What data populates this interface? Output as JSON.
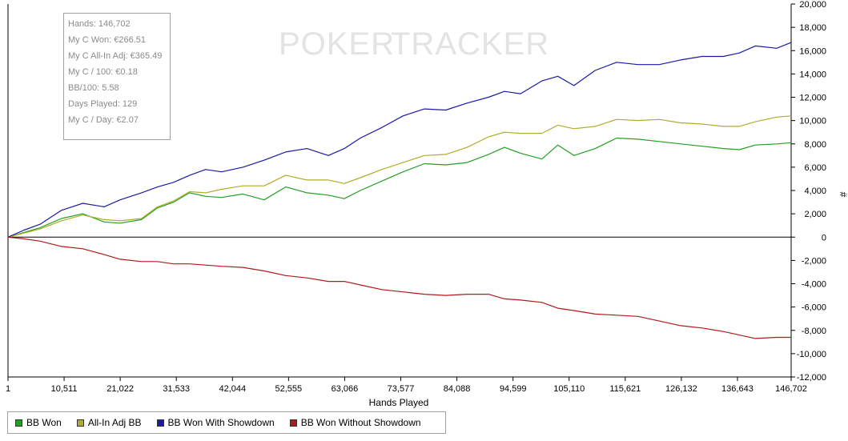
{
  "watermark": {
    "text_poker": "POKER",
    "text_tracker": "TRACKER"
  },
  "stats": {
    "lines": [
      "Hands: 146,702",
      "My C Won: €266.51",
      "My C All-In Adj: €365.49",
      "My C / 100: €0.18",
      "BB/100: 5.58",
      "Days Played: 129",
      "My C / Day: €2.07"
    ]
  },
  "legend": {
    "items": [
      {
        "label": "BB Won",
        "color": "#22a022"
      },
      {
        "label": "All-In Adj BB",
        "color": "#b0ac2a"
      },
      {
        "label": "BB Won With Showdown",
        "color": "#1a1aa6"
      },
      {
        "label": "BB Won Without Showdown",
        "color": "#b01a1a"
      }
    ]
  },
  "chart_data": {
    "type": "line",
    "title": "",
    "xlabel": "Hands Played",
    "ylabel": "#",
    "xlim": [
      1,
      146702
    ],
    "ylim": [
      -12000,
      20000
    ],
    "x_ticks": [
      "1",
      "10,511",
      "21,022",
      "31,533",
      "42,044",
      "52,555",
      "63,066",
      "73,577",
      "84,088",
      "94,599",
      "105,110",
      "115,621",
      "126,132",
      "136,643",
      "146,702"
    ],
    "x_tick_values": [
      1,
      10511,
      21022,
      31533,
      42044,
      52555,
      63066,
      73577,
      84088,
      94599,
      105110,
      115621,
      126132,
      136643,
      146702
    ],
    "y_ticks": [
      "20,000",
      "18,000",
      "16,000",
      "14,000",
      "12,000",
      "10,000",
      "8,000",
      "6,000",
      "4,000",
      "2,000",
      "0",
      "-2,000",
      "-4,000",
      "-6,000",
      "-8,000",
      "-10,000",
      "-12,000"
    ],
    "y_tick_values": [
      20000,
      18000,
      16000,
      14000,
      12000,
      10000,
      8000,
      6000,
      4000,
      2000,
      0,
      -2000,
      -4000,
      -6000,
      -8000,
      -10000,
      -12000
    ],
    "legend_position": "bottom-left",
    "grid": false,
    "series": [
      {
        "name": "BB Won",
        "color": "#22a022",
        "x": [
          1,
          3000,
          6000,
          10000,
          14000,
          18000,
          21000,
          25000,
          28000,
          31000,
          34000,
          37000,
          40000,
          44000,
          48000,
          52000,
          56000,
          60000,
          63000,
          66000,
          70000,
          74000,
          78000,
          82000,
          86000,
          90000,
          93000,
          96000,
          100000,
          103000,
          106000,
          110000,
          114000,
          118000,
          122000,
          126000,
          130000,
          134000,
          137000,
          140000,
          144000,
          146702
        ],
        "y": [
          0,
          400,
          800,
          1600,
          2000,
          1300,
          1200,
          1500,
          2500,
          3000,
          3800,
          3500,
          3400,
          3700,
          3200,
          4300,
          3800,
          3600,
          3300,
          4000,
          4800,
          5600,
          6300,
          6200,
          6400,
          7100,
          7700,
          7200,
          6700,
          7900,
          7000,
          7600,
          8500,
          8400,
          8200,
          8000,
          7800,
          7600,
          7500,
          7900,
          8000,
          8100
        ]
      },
      {
        "name": "All-In Adj BB",
        "color": "#b0ac2a",
        "x": [
          1,
          3000,
          6000,
          10000,
          14000,
          18000,
          21000,
          25000,
          28000,
          31000,
          34000,
          37000,
          40000,
          44000,
          48000,
          52000,
          56000,
          60000,
          63000,
          66000,
          70000,
          74000,
          78000,
          82000,
          86000,
          90000,
          93000,
          96000,
          100000,
          103000,
          106000,
          110000,
          114000,
          118000,
          122000,
          126000,
          130000,
          134000,
          137000,
          140000,
          144000,
          146702
        ],
        "y": [
          0,
          350,
          700,
          1400,
          1900,
          1500,
          1400,
          1600,
          2600,
          3100,
          3900,
          3800,
          4100,
          4400,
          4400,
          5300,
          4900,
          4900,
          4600,
          5100,
          5800,
          6400,
          7000,
          7100,
          7700,
          8600,
          9000,
          8900,
          8900,
          9600,
          9300,
          9500,
          10100,
          10000,
          10100,
          9800,
          9700,
          9500,
          9500,
          9900,
          10300,
          10400
        ]
      },
      {
        "name": "BB Won With Showdown",
        "color": "#1a1aa6",
        "x": [
          1,
          3000,
          6000,
          10000,
          14000,
          18000,
          21000,
          25000,
          28000,
          31000,
          34000,
          37000,
          40000,
          44000,
          48000,
          52000,
          56000,
          60000,
          63000,
          66000,
          70000,
          74000,
          78000,
          82000,
          86000,
          90000,
          93000,
          96000,
          100000,
          103000,
          106000,
          110000,
          114000,
          118000,
          122000,
          126000,
          130000,
          134000,
          137000,
          140000,
          144000,
          146702
        ],
        "y": [
          0,
          600,
          1100,
          2300,
          2900,
          2600,
          3200,
          3800,
          4300,
          4700,
          5300,
          5800,
          5600,
          6000,
          6600,
          7300,
          7600,
          7000,
          7600,
          8500,
          9400,
          10400,
          11000,
          10900,
          11500,
          12000,
          12500,
          12300,
          13400,
          13800,
          13000,
          14300,
          15000,
          14800,
          14800,
          15200,
          15500,
          15500,
          15800,
          16400,
          16200,
          16700
        ]
      },
      {
        "name": "BB Won Without Showdown",
        "color": "#b01a1a",
        "x": [
          1,
          3000,
          6000,
          10000,
          14000,
          18000,
          21000,
          25000,
          28000,
          31000,
          34000,
          37000,
          40000,
          44000,
          48000,
          52000,
          56000,
          60000,
          63000,
          66000,
          70000,
          74000,
          78000,
          82000,
          86000,
          90000,
          93000,
          96000,
          100000,
          103000,
          106000,
          110000,
          114000,
          118000,
          122000,
          126000,
          130000,
          134000,
          137000,
          140000,
          144000,
          146702
        ],
        "y": [
          0,
          -150,
          -350,
          -800,
          -1000,
          -1500,
          -1900,
          -2100,
          -2100,
          -2300,
          -2300,
          -2400,
          -2500,
          -2600,
          -2900,
          -3300,
          -3500,
          -3800,
          -3800,
          -4100,
          -4500,
          -4700,
          -4900,
          -5000,
          -4900,
          -4900,
          -5300,
          -5400,
          -5600,
          -6100,
          -6300,
          -6600,
          -6700,
          -6800,
          -7200,
          -7600,
          -7800,
          -8100,
          -8400,
          -8700,
          -8600,
          -8600
        ]
      }
    ]
  }
}
